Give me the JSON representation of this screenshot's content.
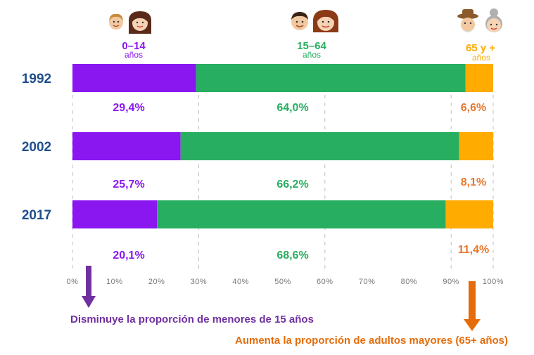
{
  "colors": {
    "children": "#8b17f0",
    "adults": "#27ae60",
    "elderly": "#ffab00",
    "year_text": "#1f4e8c",
    "children_pct_text": "#8b17f0",
    "adults_pct_text": "#27ae60",
    "elderly_pct_text": "#e8762c",
    "down_arrow": "#7030a0",
    "up_arrow": "#e46c0a",
    "note_children": "#7030a0",
    "note_elderly": "#e46c0a",
    "gridline": "#bfbfbf",
    "tick": "#777777"
  },
  "icons": [
    "children-faces-icon",
    "adults-faces-icon",
    "elderly-faces-icon"
  ],
  "groups": [
    {
      "label": "0–14",
      "sub": "años"
    },
    {
      "label": "15–64",
      "sub": "años"
    },
    {
      "label": "65 y +",
      "sub": "años"
    }
  ],
  "chart_data": {
    "type": "bar",
    "orientation": "horizontal",
    "stacked": true,
    "normalized": true,
    "categories": [
      "1992",
      "2002",
      "2017"
    ],
    "series": [
      {
        "name": "0–14 años",
        "values": [
          29.4,
          25.7,
          20.1
        ],
        "labels": [
          "29,4%",
          "25,7%",
          "20,1%"
        ]
      },
      {
        "name": "15–64 años",
        "values": [
          64.0,
          66.2,
          68.6
        ],
        "labels": [
          "64,0%",
          "66,2%",
          "68,6%"
        ]
      },
      {
        "name": "65 y + años",
        "values": [
          6.6,
          8.1,
          11.4
        ],
        "labels": [
          "6,6%",
          "8,1%",
          "11,4%"
        ]
      }
    ],
    "xlim": [
      0,
      100
    ],
    "xticks": [
      0,
      10,
      20,
      30,
      40,
      50,
      60,
      70,
      80,
      90,
      100
    ],
    "xtick_labels": [
      "0%",
      "10%",
      "20%",
      "30%",
      "40%",
      "50%",
      "60%",
      "70%",
      "80%",
      "90%",
      "100%"
    ],
    "grid": "vertical dashed at 0, 30, 60, 90, 100",
    "title": "",
    "xlabel": "",
    "ylabel": ""
  },
  "notes": {
    "children": "Disminuye la proporción de menores de 15 años",
    "elderly": "Aumenta la proporción de adultos mayores (65+ años)"
  }
}
